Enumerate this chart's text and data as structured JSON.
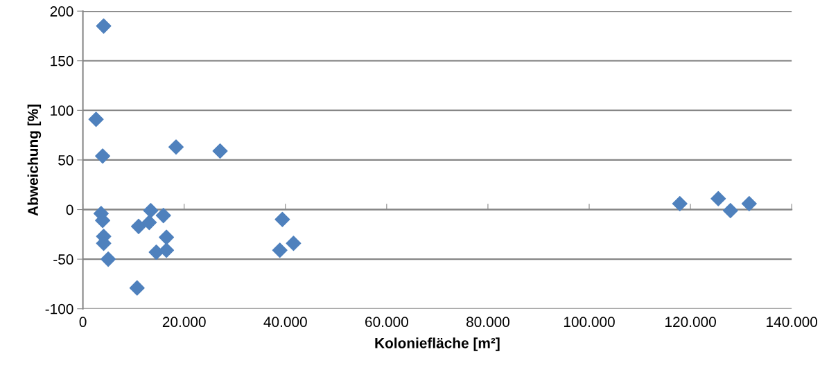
{
  "chart_data": {
    "type": "scatter",
    "xlabel": "Koloniefläche [m²]",
    "ylabel": "Abweichung [%]",
    "x": [
      4100,
      2600,
      3900,
      18400,
      27100,
      3600,
      3900,
      4100,
      4100,
      5000,
      10700,
      11000,
      13400,
      13100,
      15900,
      16500,
      14500,
      16500,
      39400,
      38900,
      41600,
      117900,
      125500,
      127900,
      131600
    ],
    "series": [
      {
        "color": "#4f81bd",
        "values": [
          185,
          91,
          54,
          63,
          59,
          -4,
          -11,
          -27,
          -34,
          -50,
          -79,
          -17,
          -1,
          -13,
          -6,
          -28,
          -43,
          -41,
          -10,
          -41,
          -34,
          6,
          11,
          -1,
          6
        ]
      }
    ],
    "xlim": [
      0,
      140000
    ],
    "xticks": [
      0,
      {
        "value": 20000,
        "label": "20.000"
      },
      {
        "value": 40000,
        "label": "40.000"
      },
      {
        "value": 60000,
        "label": "60.000"
      },
      {
        "value": 80000,
        "label": "80.000"
      },
      {
        "value": 100000,
        "label": "100.000"
      },
      {
        "value": 120000,
        "label": "120.000"
      },
      {
        "value": 140000,
        "label": "140.000"
      }
    ],
    "ylim": [
      -100,
      200
    ],
    "yticks": [
      -100,
      -50,
      0,
      50,
      100,
      150,
      200
    ],
    "grid": "y",
    "marker": "diamond",
    "legend": false
  }
}
